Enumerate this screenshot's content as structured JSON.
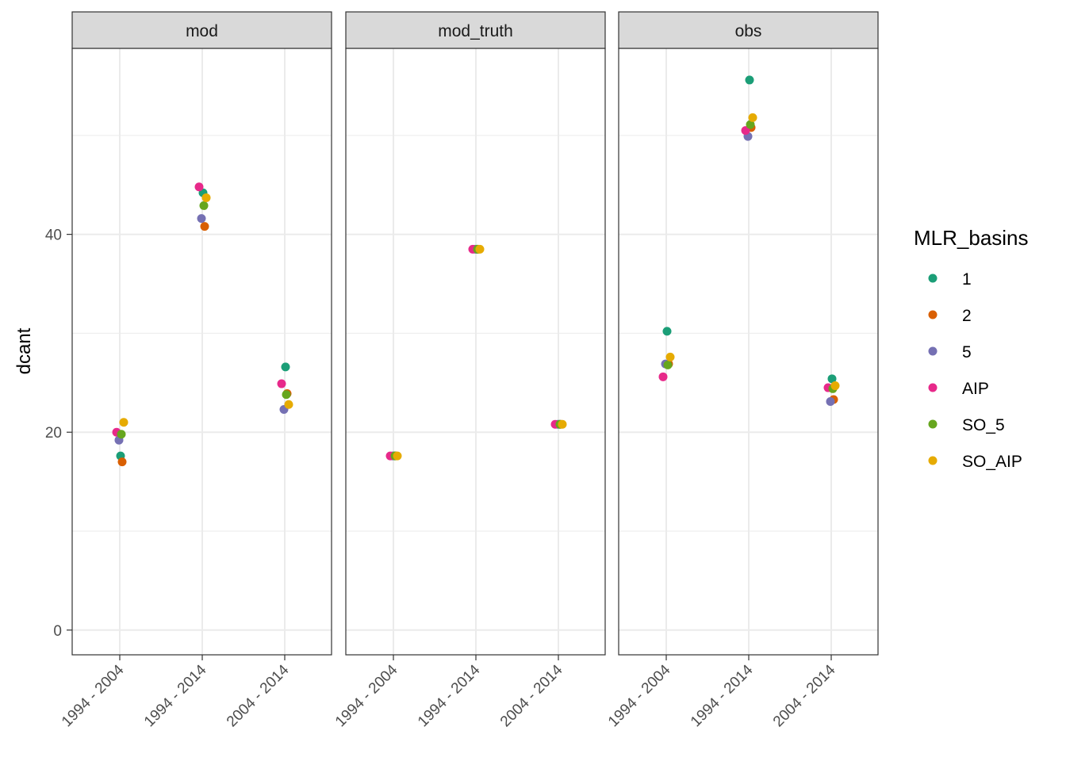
{
  "chart_data": {
    "type": "scatter",
    "ylabel": "dcant",
    "xlabel": "",
    "categories": [
      "1994 - 2004",
      "1994 - 2014",
      "2004 - 2014"
    ],
    "ylim": [
      -2.5,
      58.8
    ],
    "yticks": [
      0,
      20,
      40
    ],
    "grid": true,
    "legend_title": "MLR_basins",
    "legend_position": "right",
    "series_colors": {
      "1": "#1B9E77",
      "2": "#D95F02",
      "5": "#7570B3",
      "AIP": "#E7298A",
      "SO_5": "#66A61E",
      "SO_AIP": "#E6AB02"
    },
    "series_order": [
      "1",
      "2",
      "5",
      "AIP",
      "SO_5",
      "SO_AIP"
    ],
    "panels": [
      {
        "name": "mod",
        "points": [
          {
            "series": "1",
            "category": "1994 - 2004",
            "y": 17.6
          },
          {
            "series": "2",
            "category": "1994 - 2004",
            "y": 17.0
          },
          {
            "series": "5",
            "category": "1994 - 2004",
            "y": 19.2
          },
          {
            "series": "AIP",
            "category": "1994 - 2004",
            "y": 20.0
          },
          {
            "series": "SO_5",
            "category": "1994 - 2004",
            "y": 19.8
          },
          {
            "series": "SO_AIP",
            "category": "1994 - 2004",
            "y": 21.0
          },
          {
            "series": "1",
            "category": "1994 - 2014",
            "y": 44.2
          },
          {
            "series": "2",
            "category": "1994 - 2014",
            "y": 40.8
          },
          {
            "series": "5",
            "category": "1994 - 2014",
            "y": 41.6
          },
          {
            "series": "AIP",
            "category": "1994 - 2014",
            "y": 44.8
          },
          {
            "series": "SO_5",
            "category": "1994 - 2014",
            "y": 42.9
          },
          {
            "series": "SO_AIP",
            "category": "1994 - 2014",
            "y": 43.7
          },
          {
            "series": "1",
            "category": "2004 - 2014",
            "y": 26.6
          },
          {
            "series": "2",
            "category": "2004 - 2014",
            "y": 23.9
          },
          {
            "series": "5",
            "category": "2004 - 2014",
            "y": 22.3
          },
          {
            "series": "AIP",
            "category": "2004 - 2014",
            "y": 24.9
          },
          {
            "series": "SO_5",
            "category": "2004 - 2014",
            "y": 23.8
          },
          {
            "series": "SO_AIP",
            "category": "2004 - 2014",
            "y": 22.8
          }
        ]
      },
      {
        "name": "mod_truth",
        "points": [
          {
            "series": "1",
            "category": "1994 - 2004",
            "y": 17.6
          },
          {
            "series": "2",
            "category": "1994 - 2004",
            "y": 17.6
          },
          {
            "series": "5",
            "category": "1994 - 2004",
            "y": 17.6
          },
          {
            "series": "AIP",
            "category": "1994 - 2004",
            "y": 17.6
          },
          {
            "series": "SO_5",
            "category": "1994 - 2004",
            "y": 17.6
          },
          {
            "series": "SO_AIP",
            "category": "1994 - 2004",
            "y": 17.6
          },
          {
            "series": "1",
            "category": "1994 - 2014",
            "y": 38.5
          },
          {
            "series": "2",
            "category": "1994 - 2014",
            "y": 38.5
          },
          {
            "series": "5",
            "category": "1994 - 2014",
            "y": 38.5
          },
          {
            "series": "AIP",
            "category": "1994 - 2014",
            "y": 38.5
          },
          {
            "series": "SO_5",
            "category": "1994 - 2014",
            "y": 38.5
          },
          {
            "series": "SO_AIP",
            "category": "1994 - 2014",
            "y": 38.5
          },
          {
            "series": "1",
            "category": "2004 - 2014",
            "y": 20.8
          },
          {
            "series": "2",
            "category": "2004 - 2014",
            "y": 20.8
          },
          {
            "series": "5",
            "category": "2004 - 2014",
            "y": 20.8
          },
          {
            "series": "AIP",
            "category": "2004 - 2014",
            "y": 20.8
          },
          {
            "series": "SO_5",
            "category": "2004 - 2014",
            "y": 20.8
          },
          {
            "series": "SO_AIP",
            "category": "2004 - 2014",
            "y": 20.8
          }
        ]
      },
      {
        "name": "obs",
        "points": [
          {
            "series": "1",
            "category": "1994 - 2004",
            "y": 30.2
          },
          {
            "series": "2",
            "category": "1994 - 2004",
            "y": 26.9
          },
          {
            "series": "5",
            "category": "1994 - 2004",
            "y": 26.9
          },
          {
            "series": "AIP",
            "category": "1994 - 2004",
            "y": 25.6
          },
          {
            "series": "SO_5",
            "category": "1994 - 2004",
            "y": 26.8
          },
          {
            "series": "SO_AIP",
            "category": "1994 - 2004",
            "y": 27.6
          },
          {
            "series": "1",
            "category": "1994 - 2014",
            "y": 55.6
          },
          {
            "series": "2",
            "category": "1994 - 2014",
            "y": 50.8
          },
          {
            "series": "5",
            "category": "1994 - 2014",
            "y": 49.9
          },
          {
            "series": "AIP",
            "category": "1994 - 2014",
            "y": 50.5
          },
          {
            "series": "SO_5",
            "category": "1994 - 2014",
            "y": 51.1
          },
          {
            "series": "SO_AIP",
            "category": "1994 - 2014",
            "y": 51.8
          },
          {
            "series": "1",
            "category": "2004 - 2014",
            "y": 25.4
          },
          {
            "series": "2",
            "category": "2004 - 2014",
            "y": 23.3
          },
          {
            "series": "5",
            "category": "2004 - 2014",
            "y": 23.1
          },
          {
            "series": "AIP",
            "category": "2004 - 2014",
            "y": 24.5
          },
          {
            "series": "SO_5",
            "category": "2004 - 2014",
            "y": 24.4
          },
          {
            "series": "SO_AIP",
            "category": "2004 - 2014",
            "y": 24.7
          }
        ]
      }
    ]
  }
}
